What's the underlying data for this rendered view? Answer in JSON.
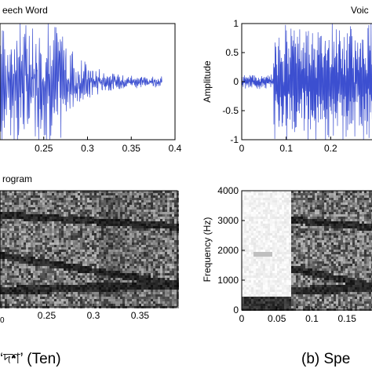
{
  "chart_data": [
    {
      "type": "line",
      "title": "eech Word",
      "xlabel": "",
      "ylabel": "",
      "xlim": [
        0.2,
        0.4
      ],
      "ylim": [
        -1,
        1
      ],
      "x_ticks": [
        "0.25",
        "0.3",
        "0.35",
        "0.4"
      ],
      "y_ticks": [],
      "series_color": "#3c4fd0",
      "description_points": {
        "onset": 0.2,
        "decay": 0.27,
        "end": 0.385
      }
    },
    {
      "type": "line",
      "title": "Voic",
      "xlabel": "",
      "ylabel": "Amplitude",
      "xlim": [
        0,
        0.3
      ],
      "ylim": [
        -1,
        1
      ],
      "x_ticks": [
        "0",
        "0.1",
        "0.2"
      ],
      "y_ticks": [
        "1",
        "0.5",
        "0",
        "-0.5",
        "-1"
      ],
      "series_color": "#3c4fd0",
      "description_points": {
        "onset": 0.07
      }
    },
    {
      "type": "heatmap",
      "title": "rogram",
      "xlabel": "",
      "ylabel": "",
      "xlim": [
        0.2,
        0.39
      ],
      "x_ticks": [
        "0.25",
        "0.3",
        "0.35"
      ],
      "y_ticks": [],
      "colormap": "gray"
    },
    {
      "type": "heatmap",
      "title": "",
      "xlabel": "",
      "ylabel": "Frequency (Hz)",
      "xlim": [
        0,
        0.19
      ],
      "ylim": [
        0,
        4000
      ],
      "x_ticks": [
        "0",
        "0.05",
        "0.1",
        "0.15"
      ],
      "y_ticks": [
        "4000",
        "3000",
        "2000",
        "1000",
        "0"
      ],
      "colormap": "gray",
      "description_points": {
        "onset": 0.07
      }
    }
  ],
  "captions": {
    "left": "‘দশ’ (Ten)",
    "right": "(b) Spe"
  },
  "stray_tick": "0"
}
